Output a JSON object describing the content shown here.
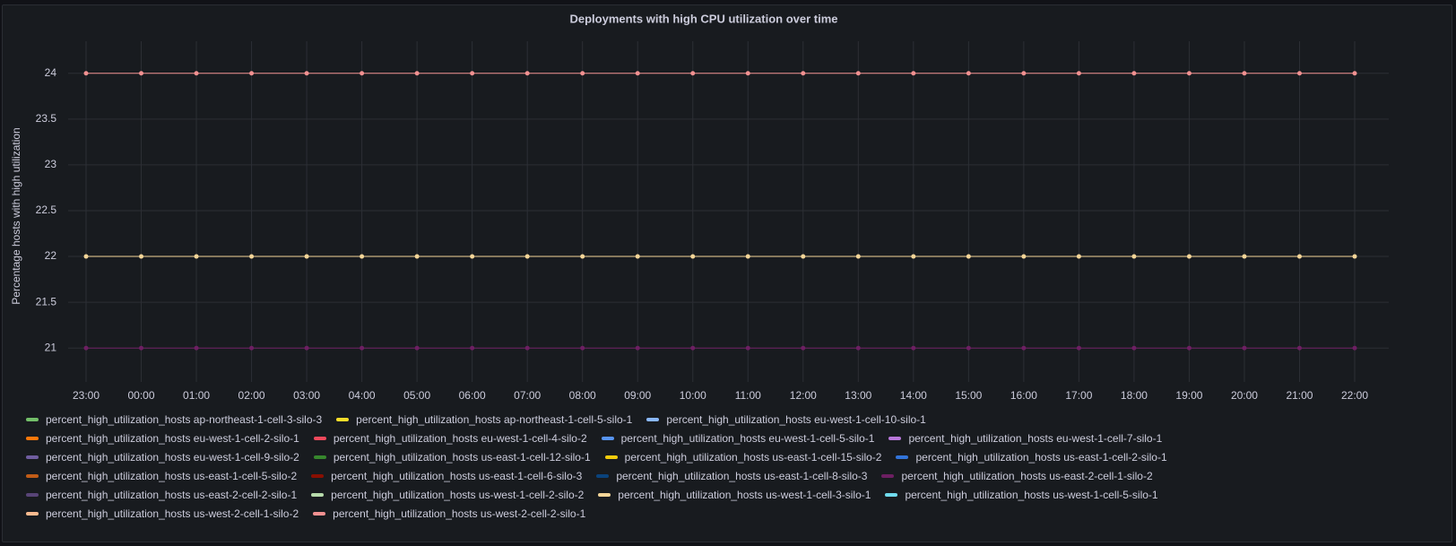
{
  "chart_data": {
    "type": "line",
    "title": "Deployments with high CPU utilization over time",
    "ylabel": "Percentage hosts with high utilization",
    "categories": [
      "23:00",
      "00:00",
      "01:00",
      "02:00",
      "03:00",
      "04:00",
      "05:00",
      "06:00",
      "07:00",
      "08:00",
      "09:00",
      "10:00",
      "11:00",
      "12:00",
      "13:00",
      "14:00",
      "15:00",
      "16:00",
      "17:00",
      "18:00",
      "19:00",
      "20:00",
      "21:00",
      "22:00"
    ],
    "ylim": [
      20.63,
      24.35
    ],
    "yticks": [
      21,
      21.5,
      22,
      22.5,
      23,
      23.5,
      24
    ],
    "grid": true,
    "legend": "bottom",
    "series": [
      {
        "name": "percent_high_utilization_hosts ap-northeast-1-cell-3-silo-3",
        "color": "#73bf69",
        "values": [
          null,
          null,
          null,
          null,
          null,
          null,
          null,
          null,
          null,
          null,
          null,
          null,
          null,
          null,
          null,
          null,
          null,
          null,
          null,
          null,
          null,
          null,
          null,
          null
        ]
      },
      {
        "name": "percent_high_utilization_hosts ap-northeast-1-cell-5-silo-1",
        "color": "#fade2a",
        "values": [
          null,
          null,
          null,
          null,
          null,
          null,
          null,
          null,
          null,
          null,
          null,
          null,
          null,
          null,
          null,
          null,
          null,
          null,
          null,
          null,
          null,
          null,
          null,
          null
        ]
      },
      {
        "name": "percent_high_utilization_hosts eu-west-1-cell-10-silo-1",
        "color": "#8ab8ff",
        "values": [
          null,
          null,
          null,
          null,
          null,
          null,
          null,
          null,
          null,
          null,
          null,
          null,
          null,
          null,
          null,
          null,
          null,
          null,
          null,
          null,
          null,
          null,
          null,
          null
        ]
      },
      {
        "name": "percent_high_utilization_hosts eu-west-1-cell-2-silo-1",
        "color": "#ff780a",
        "values": [
          null,
          null,
          null,
          null,
          null,
          null,
          null,
          null,
          null,
          null,
          null,
          null,
          null,
          null,
          null,
          null,
          null,
          null,
          null,
          null,
          null,
          null,
          null,
          null
        ]
      },
      {
        "name": "percent_high_utilization_hosts eu-west-1-cell-4-silo-2",
        "color": "#f2495c",
        "values": [
          null,
          null,
          null,
          null,
          null,
          null,
          null,
          null,
          null,
          null,
          null,
          null,
          null,
          null,
          null,
          null,
          null,
          null,
          null,
          null,
          null,
          null,
          null,
          null
        ]
      },
      {
        "name": "percent_high_utilization_hosts eu-west-1-cell-5-silo-1",
        "color": "#5794f2",
        "values": [
          null,
          null,
          null,
          null,
          null,
          null,
          null,
          null,
          null,
          null,
          null,
          null,
          null,
          null,
          null,
          null,
          null,
          null,
          null,
          null,
          null,
          null,
          null,
          null
        ]
      },
      {
        "name": "percent_high_utilization_hosts eu-west-1-cell-7-silo-1",
        "color": "#b877d9",
        "values": [
          null,
          null,
          null,
          null,
          null,
          null,
          null,
          null,
          null,
          null,
          null,
          null,
          null,
          null,
          null,
          null,
          null,
          null,
          null,
          null,
          null,
          null,
          null,
          null
        ]
      },
      {
        "name": "percent_high_utilization_hosts eu-west-1-cell-9-silo-2",
        "color": "#705da0",
        "values": [
          null,
          null,
          null,
          null,
          null,
          null,
          null,
          null,
          null,
          null,
          null,
          null,
          null,
          null,
          null,
          null,
          null,
          null,
          null,
          null,
          null,
          null,
          null,
          null
        ]
      },
      {
        "name": "percent_high_utilization_hosts us-east-1-cell-12-silo-1",
        "color": "#37872d",
        "values": [
          null,
          null,
          null,
          null,
          null,
          null,
          null,
          null,
          null,
          null,
          null,
          null,
          null,
          null,
          null,
          null,
          null,
          null,
          null,
          null,
          null,
          null,
          null,
          null
        ]
      },
      {
        "name": "percent_high_utilization_hosts us-east-1-cell-15-silo-2",
        "color": "#f2cc0c",
        "values": [
          null,
          null,
          null,
          null,
          null,
          null,
          null,
          null,
          null,
          null,
          null,
          null,
          null,
          null,
          null,
          null,
          null,
          null,
          null,
          null,
          null,
          null,
          null,
          null
        ]
      },
      {
        "name": "percent_high_utilization_hosts us-east-1-cell-2-silo-1",
        "color": "#3274d9",
        "values": [
          null,
          null,
          null,
          null,
          null,
          null,
          null,
          null,
          null,
          null,
          null,
          null,
          null,
          null,
          null,
          null,
          null,
          null,
          null,
          null,
          null,
          null,
          null,
          null
        ]
      },
      {
        "name": "percent_high_utilization_hosts us-east-1-cell-5-silo-2",
        "color": "#c15c17",
        "values": [
          null,
          null,
          null,
          null,
          null,
          null,
          null,
          null,
          null,
          null,
          null,
          null,
          null,
          null,
          null,
          null,
          null,
          null,
          null,
          null,
          null,
          null,
          null,
          null
        ]
      },
      {
        "name": "percent_high_utilization_hosts us-east-1-cell-6-silo-3",
        "color": "#890f02",
        "values": [
          null,
          null,
          null,
          null,
          null,
          null,
          null,
          null,
          null,
          null,
          null,
          null,
          null,
          null,
          null,
          null,
          null,
          null,
          null,
          null,
          null,
          null,
          null,
          null
        ]
      },
      {
        "name": "percent_high_utilization_hosts us-east-1-cell-8-silo-3",
        "color": "#0a437c",
        "values": [
          null,
          null,
          null,
          null,
          null,
          null,
          null,
          null,
          null,
          null,
          null,
          null,
          null,
          null,
          null,
          null,
          null,
          null,
          null,
          null,
          null,
          null,
          null,
          null
        ]
      },
      {
        "name": "percent_high_utilization_hosts us-east-2-cell-1-silo-2",
        "color": "#6d1f62",
        "values": [
          21,
          21,
          21,
          21,
          21,
          21,
          21,
          21,
          21,
          21,
          21,
          21,
          21,
          21,
          21,
          21,
          21,
          21,
          21,
          21,
          21,
          21,
          21,
          21
        ]
      },
      {
        "name": "percent_high_utilization_hosts us-east-2-cell-2-silo-1",
        "color": "#584477",
        "values": [
          null,
          null,
          null,
          null,
          null,
          null,
          null,
          null,
          null,
          null,
          null,
          null,
          null,
          null,
          null,
          null,
          null,
          null,
          null,
          null,
          null,
          null,
          null,
          null
        ]
      },
      {
        "name": "percent_high_utilization_hosts us-west-1-cell-2-silo-2",
        "color": "#b7dbab",
        "values": [
          null,
          null,
          null,
          null,
          null,
          null,
          null,
          null,
          null,
          null,
          null,
          null,
          null,
          null,
          null,
          null,
          null,
          null,
          null,
          null,
          null,
          null,
          null,
          null
        ]
      },
      {
        "name": "percent_high_utilization_hosts us-west-1-cell-3-silo-1",
        "color": "#f4d598",
        "values": [
          22,
          22,
          22,
          22,
          22,
          22,
          22,
          22,
          22,
          22,
          22,
          22,
          22,
          22,
          22,
          22,
          22,
          22,
          22,
          22,
          22,
          22,
          22,
          22
        ]
      },
      {
        "name": "percent_high_utilization_hosts us-west-1-cell-5-silo-1",
        "color": "#70dbed",
        "values": [
          null,
          null,
          null,
          null,
          null,
          null,
          null,
          null,
          null,
          null,
          null,
          null,
          null,
          null,
          null,
          null,
          null,
          null,
          null,
          null,
          null,
          null,
          null,
          null
        ]
      },
      {
        "name": "percent_high_utilization_hosts us-west-2-cell-1-silo-2",
        "color": "#f9ba8f",
        "values": [
          null,
          null,
          null,
          null,
          null,
          null,
          null,
          null,
          null,
          null,
          null,
          null,
          null,
          null,
          null,
          null,
          null,
          null,
          null,
          null,
          null,
          null,
          null,
          null
        ]
      },
      {
        "name": "percent_high_utilization_hosts us-west-2-cell-2-silo-1",
        "color": "#f29191",
        "values": [
          24,
          24,
          24,
          24,
          24,
          24,
          24,
          24,
          24,
          24,
          24,
          24,
          24,
          24,
          24,
          24,
          24,
          24,
          24,
          24,
          24,
          24,
          24,
          24
        ]
      }
    ]
  }
}
